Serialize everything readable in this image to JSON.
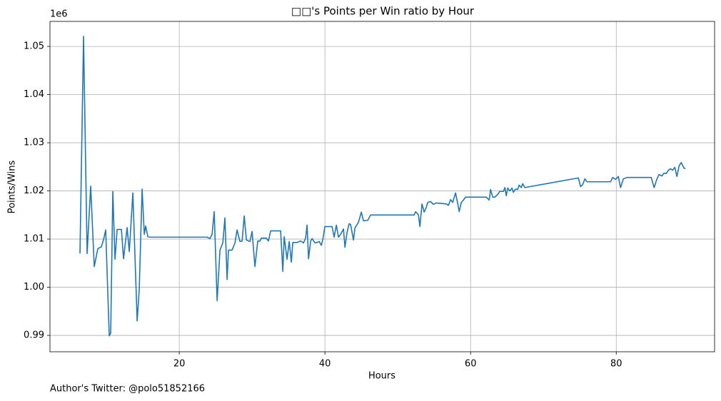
{
  "chart_data": {
    "type": "line",
    "title": "□□'s Points per Win ratio by Hour",
    "x_label": "Hours",
    "y_label": "Points/Wins",
    "y_offset_label": "1e6",
    "footer": "Author's Twitter: @polo51852166",
    "color": "#1f77b4",
    "grid": true,
    "xlim": [
      2.25,
      93.5
    ],
    "ylim": [
      0.9866,
      1.0552
    ],
    "xticks": [
      20,
      40,
      60,
      80
    ],
    "yticks": [
      0.99,
      {
        "value": 1.0,
        "label": "1.00"
      },
      1.01,
      1.02,
      1.03,
      1.04,
      1.05
    ],
    "x": [
      6.37,
      6.86,
      7.35,
      7.84,
      8.33,
      8.82,
      9.31,
      9.61,
      9.9,
      10.39,
      10.59,
      10.88,
      11.18,
      11.47,
      12.06,
      12.35,
      12.84,
      13.14,
      13.63,
      14.22,
      14.51,
      14.9,
      15.2,
      15.39,
      15.69,
      15.98,
      23.82,
      24.22,
      24.51,
      24.8,
      25.2,
      25.59,
      25.98,
      26.27,
      26.57,
      26.76,
      27.25,
      27.65,
      27.94,
      28.33,
      28.63,
      28.92,
      29.22,
      29.71,
      30.0,
      30.39,
      30.78,
      31.08,
      31.27,
      31.96,
      32.25,
      32.55,
      33.92,
      34.22,
      34.41,
      34.8,
      35.1,
      35.39,
      35.59,
      36.18,
      36.67,
      37.06,
      37.35,
      37.55,
      37.75,
      38.04,
      38.24,
      38.63,
      38.92,
      39.22,
      39.51,
      39.71,
      40.0,
      40.98,
      41.27,
      41.57,
      41.86,
      42.16,
      42.55,
      42.75,
      43.04,
      43.33,
      43.53,
      43.92,
      44.12,
      44.61,
      45.0,
      45.29,
      45.88,
      46.27,
      52.25,
      52.45,
      52.84,
      53.04,
      53.33,
      53.63,
      53.92,
      54.12,
      54.51,
      54.9,
      55.29,
      56.67,
      56.96,
      57.25,
      57.55,
      57.94,
      58.24,
      58.43,
      58.73,
      59.02,
      59.31,
      62.16,
      62.55,
      62.75,
      63.04,
      63.33,
      63.73,
      64.02,
      64.51,
      64.71,
      64.9,
      65.1,
      65.39,
      65.69,
      65.88,
      66.18,
      66.47,
      66.67,
      66.96,
      67.16,
      67.45,
      74.8,
      75.1,
      75.39,
      75.69,
      75.98,
      79.22,
      79.51,
      79.9,
      80.29,
      80.59,
      80.98,
      81.47,
      84.8,
      85.2,
      85.59,
      85.88,
      86.27,
      86.57,
      86.86,
      87.16,
      87.45,
      87.75,
      88.04,
      88.33,
      88.63,
      88.92,
      89.31,
      89.51
    ],
    "values": [
      1.007,
      1.0521,
      1.007,
      1.021,
      1.0043,
      1.008,
      1.0084,
      1.0099,
      1.0119,
      0.9899,
      0.9905,
      1.0199,
      1.0058,
      1.012,
      1.012,
      1.0059,
      1.0124,
      1.0074,
      1.0196,
      0.993,
      0.9996,
      1.0204,
      1.011,
      1.0127,
      1.0105,
      1.0104,
      1.0104,
      1.0101,
      1.011,
      1.0157,
      0.9972,
      1.0077,
      1.0092,
      1.0144,
      1.0016,
      1.0077,
      1.0077,
      1.0092,
      1.0119,
      1.0095,
      1.0096,
      1.0148,
      1.0098,
      1.0095,
      1.0116,
      1.0043,
      1.0096,
      1.0096,
      1.0102,
      1.0102,
      1.0096,
      1.0117,
      1.0117,
      1.0033,
      1.0105,
      1.0058,
      1.0095,
      1.0052,
      1.0093,
      1.0093,
      1.0096,
      1.0092,
      1.0102,
      1.0129,
      1.0059,
      1.0096,
      1.0101,
      1.0092,
      1.0093,
      1.0095,
      1.0087,
      1.0099,
      1.0126,
      1.0126,
      1.0104,
      1.0129,
      1.0104,
      1.011,
      1.0121,
      1.0083,
      1.0114,
      1.0132,
      1.013,
      1.0098,
      1.0123,
      1.0135,
      1.0156,
      1.0138,
      1.0139,
      1.015,
      1.015,
      1.0157,
      1.015,
      1.0126,
      1.0173,
      1.0156,
      1.0166,
      1.0176,
      1.0178,
      1.0172,
      1.0175,
      1.0173,
      1.017,
      1.0182,
      1.0176,
      1.0196,
      1.0173,
      1.0157,
      1.0176,
      1.0181,
      1.0187,
      1.0187,
      1.0181,
      1.0203,
      1.0187,
      1.0187,
      1.0193,
      1.0199,
      1.0199,
      1.0207,
      1.019,
      1.0206,
      1.02,
      1.0206,
      1.0197,
      1.0204,
      1.0203,
      1.0212,
      1.0207,
      1.0215,
      1.0207,
      1.0227,
      1.0209,
      1.0213,
      1.0225,
      1.0219,
      1.0219,
      1.0228,
      1.0224,
      1.023,
      1.0207,
      1.0225,
      1.0228,
      1.0228,
      1.0207,
      1.0225,
      1.0234,
      1.0231,
      1.0237,
      1.0236,
      1.0243,
      1.0246,
      1.0243,
      1.0249,
      1.023,
      1.0252,
      1.0259,
      1.0247,
      1.0247
    ]
  }
}
